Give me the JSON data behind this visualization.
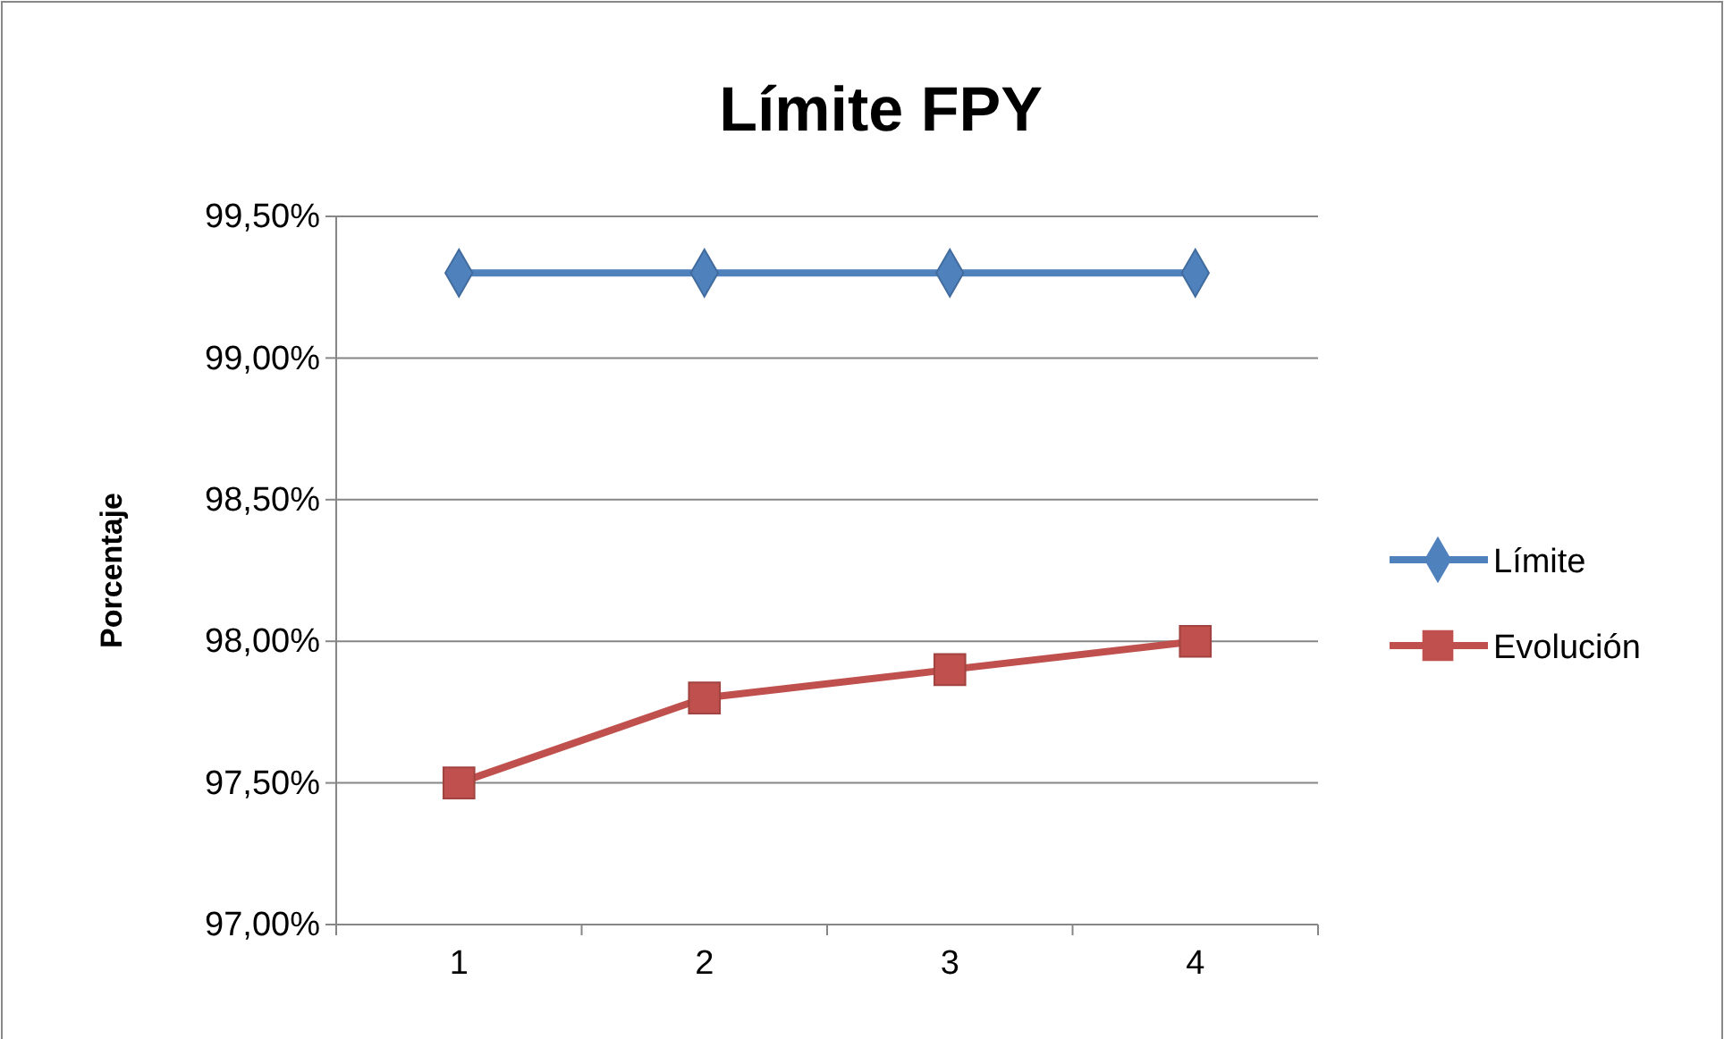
{
  "chart_data": {
    "type": "line",
    "title": "Límite FPY",
    "ylabel": "Porcentaje",
    "categories": [
      "1",
      "2",
      "3",
      "4"
    ],
    "series": [
      {
        "name": "Límite",
        "color": "#4f81bd",
        "marker": "diamond",
        "values": [
          99.3,
          99.3,
          99.3,
          99.3
        ]
      },
      {
        "name": "Evolución",
        "color": "#c0504d",
        "marker": "square",
        "values": [
          97.5,
          97.8,
          97.9,
          98.0
        ]
      }
    ],
    "ylim": [
      97,
      99.5
    ],
    "yticks": [
      {
        "value": 97,
        "label": "97,00%"
      },
      {
        "value": 97.5,
        "label": "97,50%"
      },
      {
        "value": 98,
        "label": "98,00%"
      },
      {
        "value": 98.5,
        "label": "98,50%"
      },
      {
        "value": 99,
        "label": "99,00%"
      },
      {
        "value": 99.5,
        "label": "99,50%"
      }
    ],
    "grid": "y",
    "legend": "right",
    "line_style": "solid"
  }
}
